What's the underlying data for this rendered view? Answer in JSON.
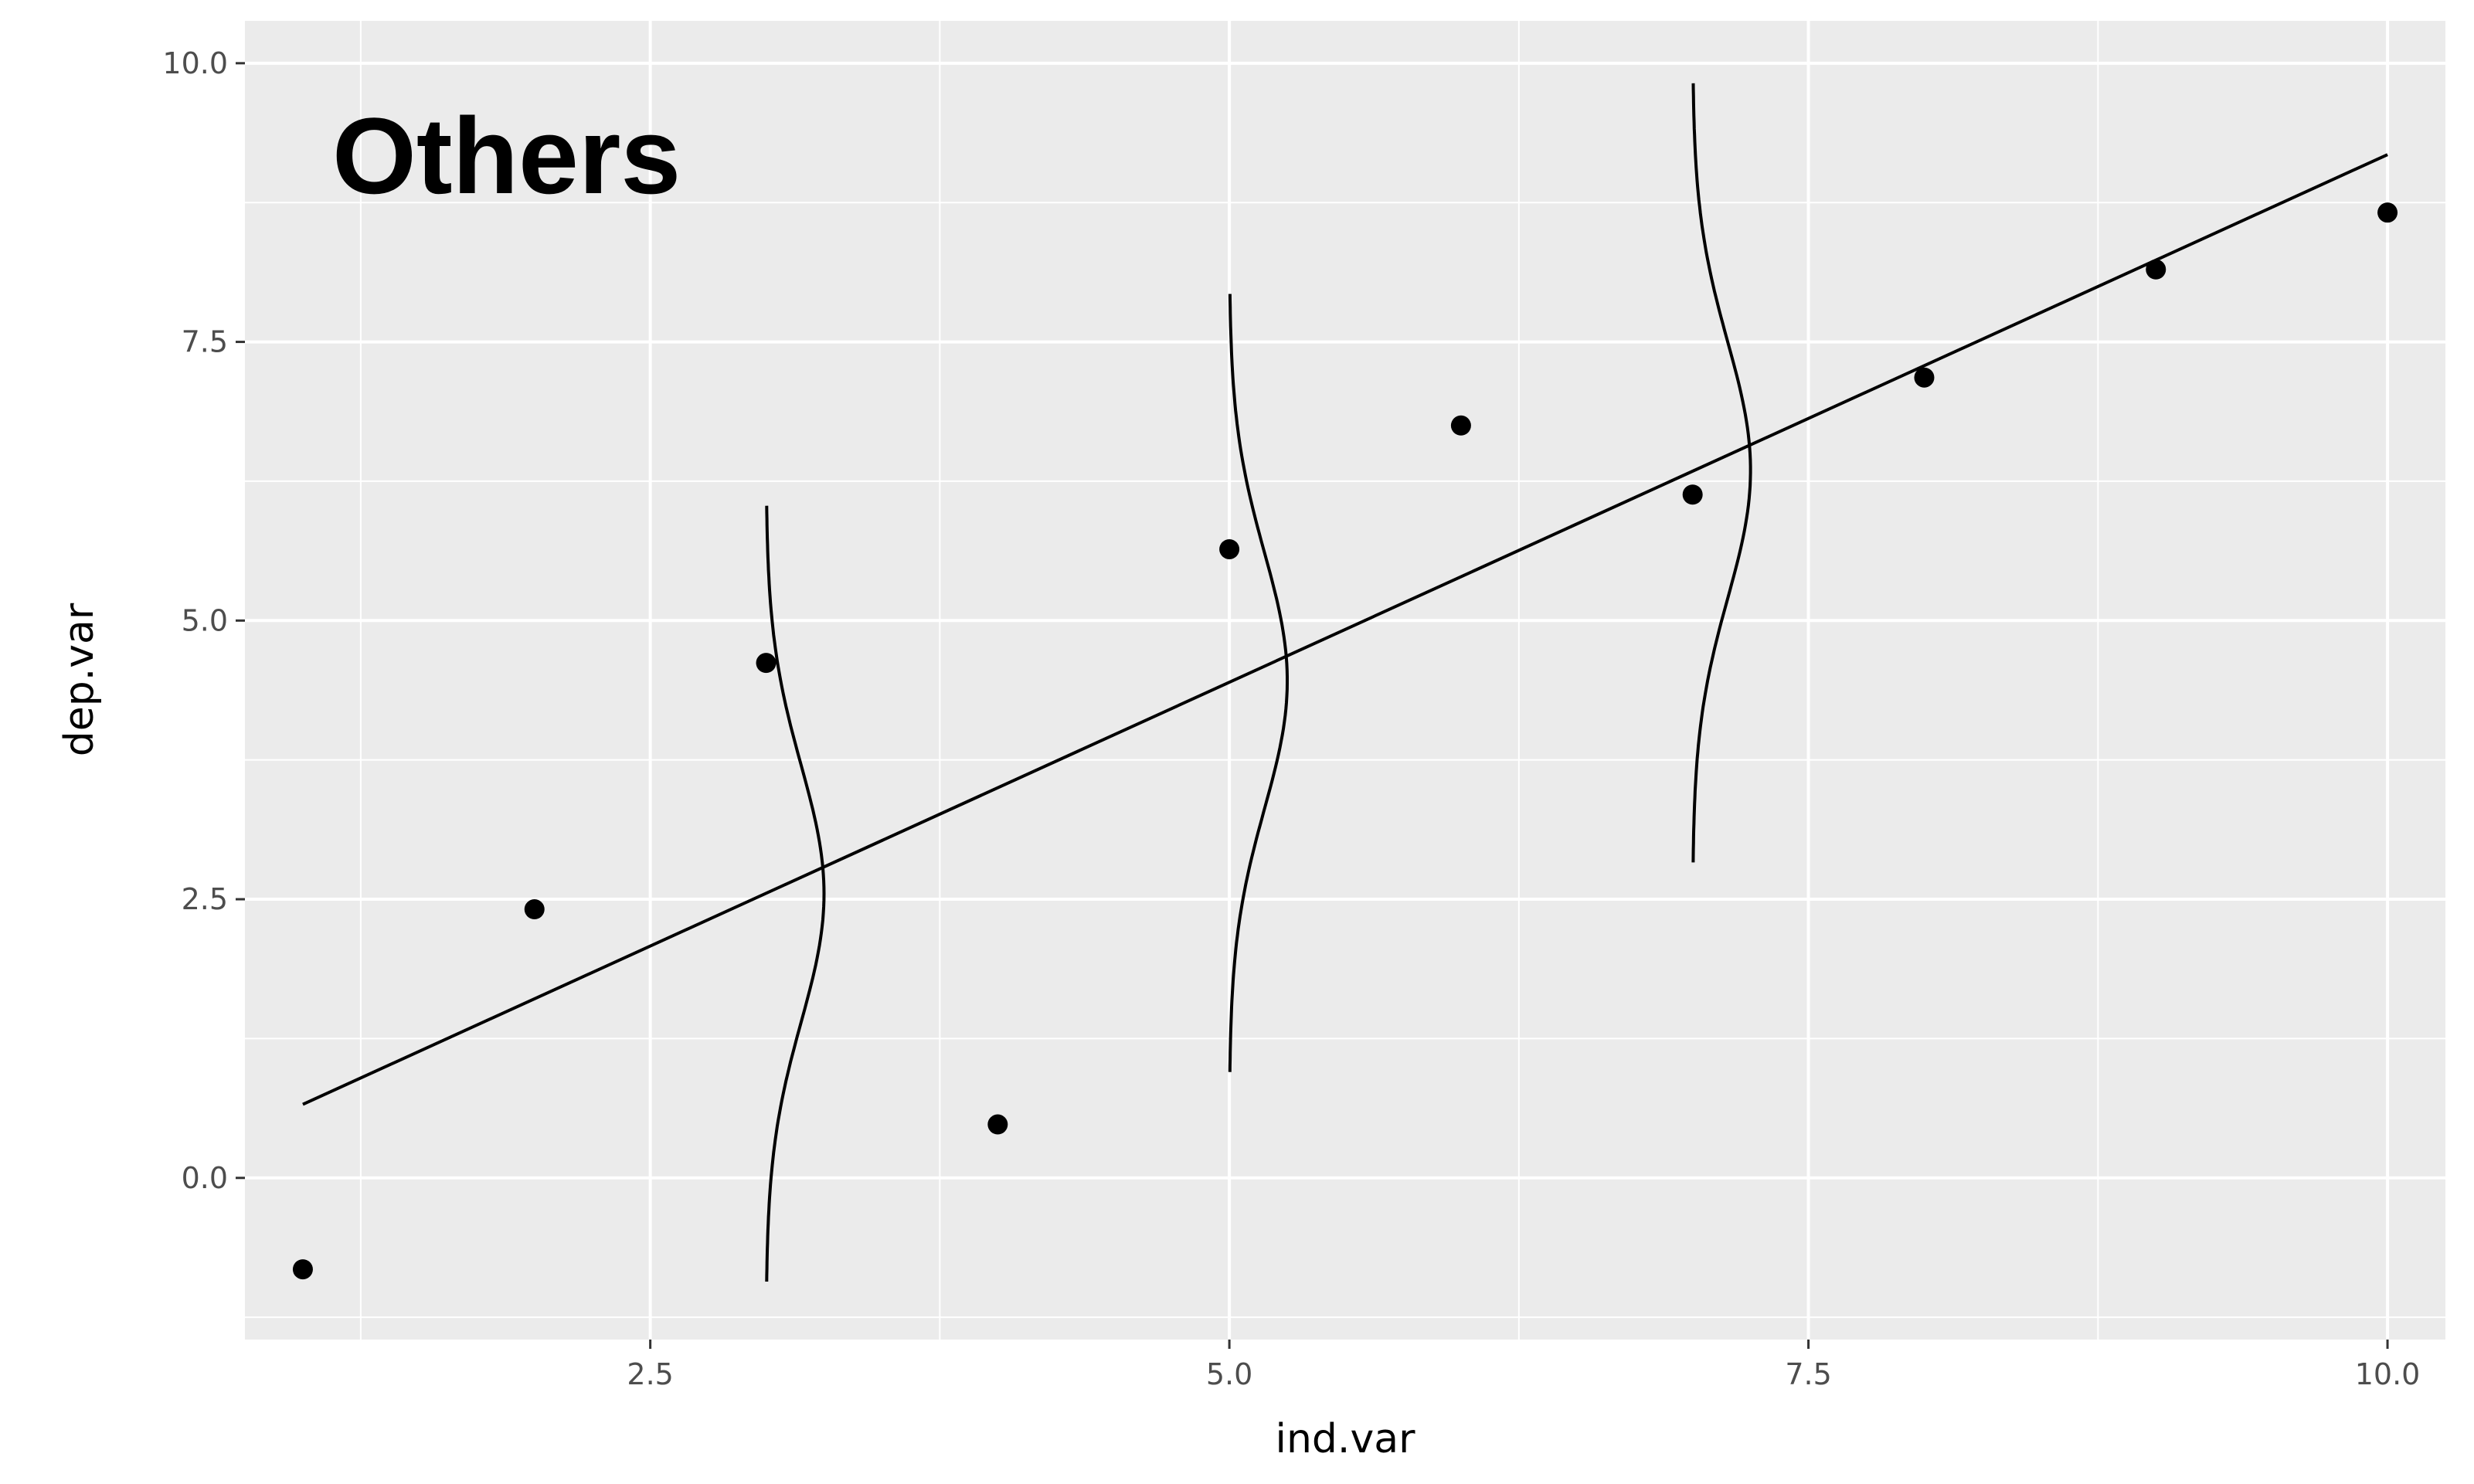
{
  "chart_data": {
    "type": "scatter",
    "annotation": "Others",
    "xlabel": "ind.var",
    "ylabel": "dep.var",
    "xlim": [
      0.75,
      10.25
    ],
    "ylim": [
      -1.45,
      10.38
    ],
    "x_ticks": [
      2.5,
      5.0,
      7.5,
      10.0
    ],
    "x_tick_labels": [
      "2.5",
      "5.0",
      "7.5",
      "10.0"
    ],
    "y_ticks": [
      0.0,
      2.5,
      5.0,
      7.5,
      10.0
    ],
    "y_tick_labels": [
      "0.0",
      "2.5",
      "5.0",
      "7.5",
      "10.0"
    ],
    "grid": true,
    "points": [
      {
        "x": 1,
        "y": -0.82
      },
      {
        "x": 2,
        "y": 2.41
      },
      {
        "x": 3,
        "y": 4.62
      },
      {
        "x": 4,
        "y": 0.48
      },
      {
        "x": 5,
        "y": 5.64
      },
      {
        "x": 6,
        "y": 6.75
      },
      {
        "x": 7,
        "y": 6.13
      },
      {
        "x": 8,
        "y": 7.18
      },
      {
        "x": 9,
        "y": 8.15
      },
      {
        "x": 10,
        "y": 8.66
      }
    ],
    "fit_line": {
      "x": [
        1,
        10
      ],
      "y": [
        0.66,
        9.18
      ]
    },
    "density_curves": [
      {
        "x": 3,
        "center": 2.55,
        "sd": 1.15,
        "y_range": [
          -0.93,
          6.03
        ],
        "peak_width": 0.25
      },
      {
        "x": 5,
        "center": 4.46,
        "sd": 1.15,
        "y_range": [
          0.95,
          7.93
        ],
        "peak_width": 0.25
      },
      {
        "x": 7,
        "center": 6.35,
        "sd": 1.15,
        "y_range": [
          2.83,
          9.82
        ],
        "peak_width": 0.25
      }
    ],
    "colors": {
      "panel_background": "#ebebeb",
      "grid": "#ffffff",
      "marks": "#000000",
      "tick_text": "#4d4d4d"
    }
  }
}
